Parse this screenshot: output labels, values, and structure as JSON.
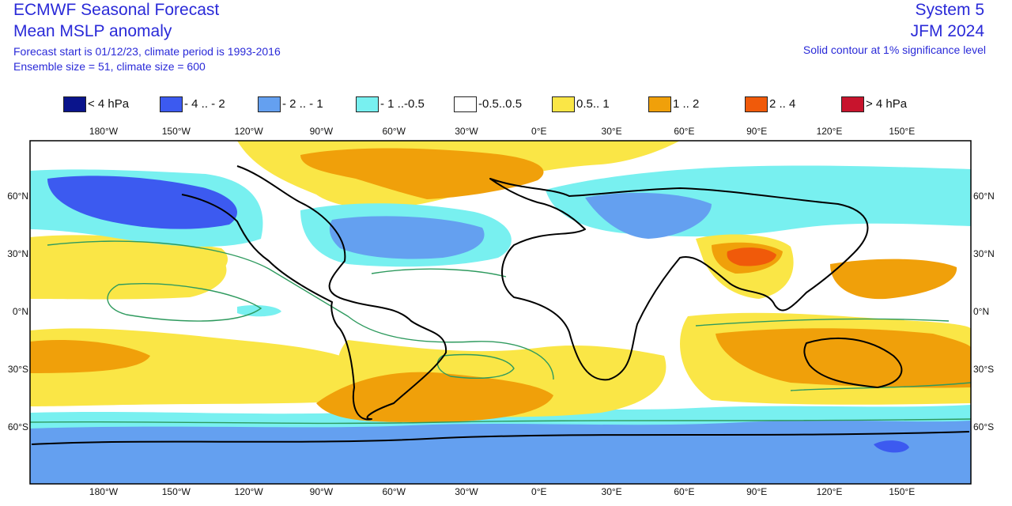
{
  "header": {
    "title": "ECMWF Seasonal Forecast",
    "variable": "Mean MSLP anomaly",
    "forecast_info": "Forecast start is 01/12/23, climate period is 1993-2016",
    "ensemble_info": "Ensemble size = 51, climate size = 600",
    "system": "System 5",
    "period": "JFM 2024",
    "significance_note": "Solid contour at 1% significance level"
  },
  "legend": [
    {
      "label": "< 4 hPa",
      "color": "#0a148c"
    },
    {
      "label": "- 4 .. - 2",
      "color": "#3c5af0"
    },
    {
      "label": "- 2 .. - 1",
      "color": "#64a0f0"
    },
    {
      "label": "- 1 ..-0.5",
      "color": "#78f0f0"
    },
    {
      "label": "-0.5..0.5",
      "color": "#ffffff"
    },
    {
      "label": "0.5.. 1",
      "color": "#fae646"
    },
    {
      "label": "1 .. 2",
      "color": "#f0a00a"
    },
    {
      "label": "2 .. 4",
      "color": "#f05a0a"
    },
    {
      "label": "> 4 hPa",
      "color": "#c8142d"
    }
  ],
  "axes": {
    "lon_labels": [
      "180°W",
      "150°W",
      "120°W",
      "90°W",
      "60°W",
      "30°W",
      "0°E",
      "30°E",
      "60°E",
      "90°E",
      "120°E",
      "150°E"
    ],
    "lat_labels": [
      "60°N",
      "30°N",
      "0°N",
      "30°S",
      "60°S"
    ]
  },
  "colors": {
    "title_text": "#2a2ad8",
    "coastline": "#000000",
    "significance_contour": "#2e9a5e"
  }
}
